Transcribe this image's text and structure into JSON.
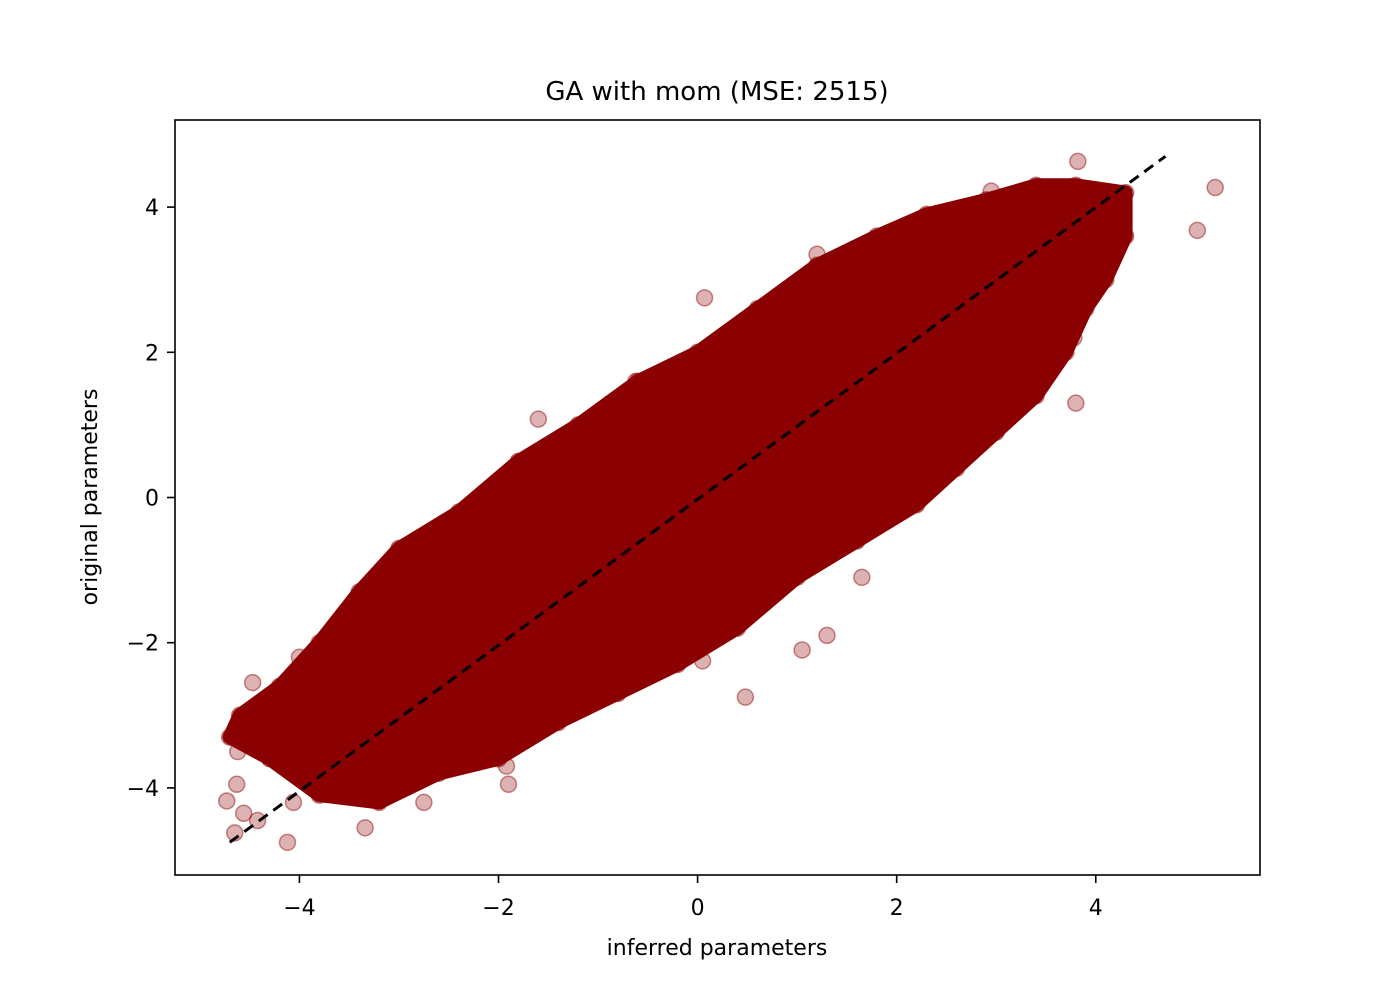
{
  "chart_data": {
    "type": "scatter",
    "title": "GA with mom (MSE: 2515)",
    "xlabel": "inferred parameters",
    "ylabel": "original parameters",
    "xlim": [
      -5.25,
      5.65
    ],
    "ylim": [
      -5.2,
      5.2
    ],
    "xticks": [
      -4,
      -2,
      0,
      2,
      4
    ],
    "yticks": [
      -4,
      -2,
      0,
      2,
      4
    ],
    "xtick_labels": [
      "−4",
      "−2",
      "0",
      "2",
      "4"
    ],
    "ytick_labels": [
      "−4",
      "−2",
      "0",
      "2",
      "4"
    ],
    "grid": false,
    "legend": "none",
    "point_color": "#8b0000",
    "point_alpha": 0.3,
    "reference_line": {
      "style": "dashed",
      "color": "#000000",
      "points": [
        [
          -4.7,
          -4.75
        ],
        [
          4.7,
          4.7
        ]
      ]
    },
    "dense_cloud": {
      "description_points": [],
      "polygon": [
        [
          -4.7,
          -3.3
        ],
        [
          -4.3,
          -3.6
        ],
        [
          -3.8,
          -4.1
        ],
        [
          -3.2,
          -4.2
        ],
        [
          -2.6,
          -3.8
        ],
        [
          -2.0,
          -3.6
        ],
        [
          -1.4,
          -3.1
        ],
        [
          -0.8,
          -2.7
        ],
        [
          -0.2,
          -2.3
        ],
        [
          0.4,
          -1.8
        ],
        [
          1.0,
          -1.1
        ],
        [
          1.6,
          -0.6
        ],
        [
          2.2,
          -0.1
        ],
        [
          2.6,
          0.4
        ],
        [
          3.0,
          0.9
        ],
        [
          3.4,
          1.4
        ],
        [
          3.7,
          2.0
        ],
        [
          3.9,
          2.6
        ],
        [
          4.1,
          3.0
        ],
        [
          4.3,
          3.6
        ],
        [
          4.3,
          4.2
        ],
        [
          3.8,
          4.3
        ],
        [
          3.4,
          4.3
        ],
        [
          2.9,
          4.1
        ],
        [
          2.3,
          3.9
        ],
        [
          1.8,
          3.6
        ],
        [
          1.2,
          3.2
        ],
        [
          0.6,
          2.6
        ],
        [
          0.0,
          2.0
        ],
        [
          -0.6,
          1.6
        ],
        [
          -1.2,
          1.0
        ],
        [
          -1.8,
          0.5
        ],
        [
          -2.4,
          -0.2
        ],
        [
          -3.0,
          -0.7
        ],
        [
          -3.4,
          -1.3
        ],
        [
          -3.8,
          -2.0
        ],
        [
          -4.2,
          -2.6
        ],
        [
          -4.6,
          -3.0
        ]
      ]
    },
    "x": [
      5.2,
      5.02,
      4.06,
      3.99,
      3.82,
      3.85,
      3.75,
      3.8,
      3.78,
      2.95,
      2.45,
      2.15,
      2.2,
      1.2,
      0.07,
      -0.62,
      -0.65,
      -0.65,
      -1.6,
      -2.08,
      -2.92,
      -3.55,
      -3.65,
      -3.98,
      -4.0,
      -4.1,
      -4.12,
      -4.2,
      -4.3,
      -4.42,
      -4.47,
      -4.62,
      -4.63,
      -4.65,
      -4.66,
      -4.73,
      -4.56,
      -4.06,
      -2.9,
      -1.92,
      -1.9,
      -0.3,
      0.48,
      1.05,
      1.3,
      1.65,
      2.55,
      3.48,
      3.6,
      3.75,
      0.05,
      -2.75,
      -3.34
    ],
    "y": [
      4.27,
      3.68,
      3.6,
      3.72,
      4.63,
      4.02,
      3.28,
      1.3,
      2.2,
      4.22,
      3.1,
      3.4,
      3.3,
      3.35,
      2.75,
      1.6,
      1.45,
      1.28,
      1.08,
      -0.02,
      -1.15,
      -1.65,
      -2.55,
      -2.95,
      -2.2,
      -3.75,
      -4.75,
      -3.55,
      -3.0,
      -4.45,
      -2.55,
      -3.5,
      -3.95,
      -4.62,
      -3.27,
      -4.18,
      -4.35,
      -4.2,
      -3.6,
      -3.7,
      -3.95,
      -2.3,
      -2.75,
      -2.1,
      -1.9,
      -1.1,
      0.4,
      2.0,
      2.45,
      2.75,
      -2.25,
      -4.2,
      -4.55
    ],
    "y_unused": []
  }
}
